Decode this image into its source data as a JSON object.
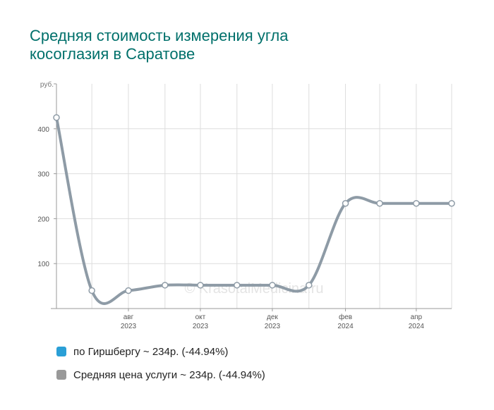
{
  "title_lines": [
    "Средняя стоимость измерения угла",
    "косоглазия в Саратове"
  ],
  "watermark": "© KrasotaiMedicina.ru",
  "legend": [
    {
      "label": "по Гиршбергу ~ 234р. (-44.94%)",
      "color": "#2a9fd6"
    },
    {
      "label": "Средняя цена услуги ~ 234р. (-44.94%)",
      "color": "#999999"
    }
  ],
  "chart_data": {
    "type": "line",
    "title": "Средняя стоимость измерения угла косоглазия в Саратове",
    "y_unit": "руб.",
    "ylim": [
      0,
      500
    ],
    "yticks": [
      100,
      200,
      300,
      400
    ],
    "xlim": [
      "2023-06-01",
      "2024-05-01"
    ],
    "x_tick_labels": [
      {
        "date": "2023-08-01",
        "label": "авг",
        "year": "2023"
      },
      {
        "date": "2023-10-01",
        "label": "окт",
        "year": "2023"
      },
      {
        "date": "2023-12-01",
        "label": "дек",
        "year": "2023"
      },
      {
        "date": "2024-02-01",
        "label": "фев",
        "year": "2024"
      },
      {
        "date": "2024-04-01",
        "label": "апр",
        "year": "2024"
      }
    ],
    "grid": true,
    "line_color": "#8e9ba6",
    "series": [
      {
        "x": [
          "2023-06-01",
          "2023-07-01",
          "2023-08-01",
          "2023-09-01",
          "2023-10-01",
          "2023-11-01",
          "2023-12-01",
          "2024-01-01",
          "2024-02-01",
          "2024-03-01",
          "2024-04-01",
          "2024-05-01"
        ],
        "values": [
          425,
          40,
          40,
          52,
          52,
          52,
          52,
          52,
          234,
          234,
          234,
          234
        ]
      }
    ]
  }
}
